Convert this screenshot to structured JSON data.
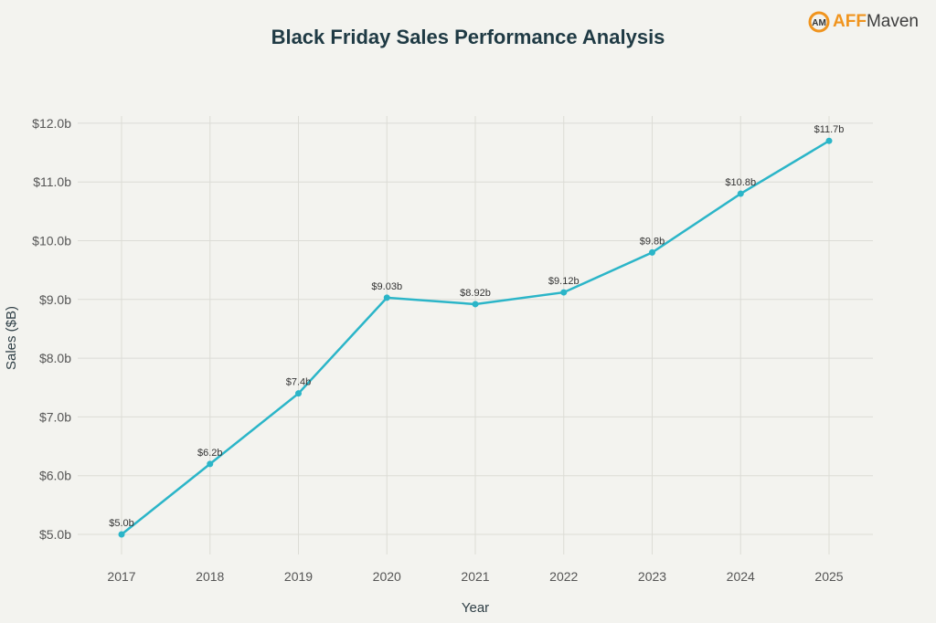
{
  "logo": {
    "text_a": "AFF",
    "text_b": "Maven"
  },
  "chart_data": {
    "type": "line",
    "title": "Black Friday Sales Performance Analysis",
    "xlabel": "Year",
    "ylabel": "Sales ($B)",
    "x": [
      "2017",
      "2018",
      "2019",
      "2020",
      "2021",
      "2022",
      "2023",
      "2024",
      "2025"
    ],
    "series": [
      {
        "values": [
          5.0,
          6.2,
          7.4,
          9.03,
          8.92,
          9.12,
          9.8,
          10.8,
          11.7
        ]
      }
    ],
    "data_labels": [
      "$5.0b",
      "$6.2b",
      "$7.4b",
      "$9.03b",
      "$8.92b",
      "$9.12b",
      "$9.8b",
      "$10.8b",
      "$11.7b"
    ],
    "yticks": [
      5,
      6,
      7,
      8,
      9,
      10,
      11,
      12
    ],
    "ytick_labels": [
      "$5.0b",
      "$6.0b",
      "$7.0b",
      "$8.0b",
      "$9.0b",
      "$10.0b",
      "$11.0b",
      "$12.0b"
    ],
    "ylim": [
      4.6,
      12.4
    ],
    "grid": true,
    "line_color": "#2bb5c8"
  }
}
